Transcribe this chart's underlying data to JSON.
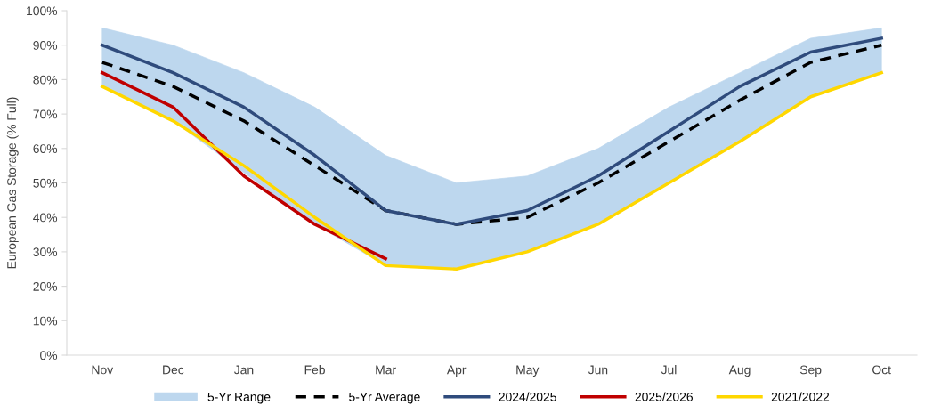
{
  "chart_data": {
    "type": "line",
    "ylabel": "European Gas Storage (% Full)",
    "categories": [
      "Nov",
      "Dec",
      "Jan",
      "Feb",
      "Mar",
      "Apr",
      "May",
      "Jun",
      "Jul",
      "Aug",
      "Sep",
      "Oct"
    ],
    "ylim": [
      0,
      100
    ],
    "yticks": [
      {
        "value": 0,
        "label": "0%"
      },
      {
        "value": 10,
        "label": "10%"
      },
      {
        "value": 20,
        "label": "20%"
      },
      {
        "value": 30,
        "label": "30%"
      },
      {
        "value": 40,
        "label": "40%"
      },
      {
        "value": 50,
        "label": "50%"
      },
      {
        "value": 60,
        "label": "60%"
      },
      {
        "value": 70,
        "label": "70%"
      },
      {
        "value": 80,
        "label": "80%"
      },
      {
        "value": 90,
        "label": "90%"
      },
      {
        "value": 100,
        "label": "100%"
      }
    ],
    "grid": false,
    "legend": "bottom",
    "series": [
      {
        "name": "5-Yr Range",
        "type": "area",
        "color": "#bdd7ee",
        "values": [
          null,
          null,
          null,
          null,
          null,
          null,
          null,
          null,
          null,
          null,
          null,
          null
        ],
        "lower": [
          78,
          68,
          53,
          38,
          26,
          25,
          30,
          38,
          50,
          62,
          75,
          82
        ],
        "upper": [
          95,
          90,
          82,
          72,
          58,
          50,
          52,
          60,
          72,
          82,
          92,
          95
        ]
      },
      {
        "name": "5-Yr Average",
        "type": "line",
        "line_style": "dashed",
        "color": "#000000",
        "values": [
          85,
          78,
          68,
          55,
          42,
          38,
          40,
          50,
          62,
          74,
          85,
          90
        ]
      },
      {
        "name": "2024/2025",
        "type": "line",
        "line_style": "solid",
        "color": "#2f4b7c",
        "values": [
          90,
          82,
          72,
          58,
          42,
          38,
          42,
          52,
          65,
          78,
          88,
          92
        ]
      },
      {
        "name": "2025/2026",
        "type": "line",
        "line_style": "solid",
        "color": "#c00000",
        "values": [
          82,
          72,
          52,
          38,
          28,
          null,
          null,
          null,
          null,
          null,
          null,
          null
        ]
      },
      {
        "name": "2021/2022",
        "type": "line",
        "line_style": "solid",
        "color": "#ffd700",
        "values": [
          78,
          68,
          55,
          40,
          26,
          25,
          30,
          38,
          50,
          62,
          75,
          82
        ]
      }
    ]
  }
}
